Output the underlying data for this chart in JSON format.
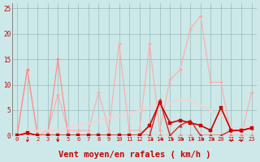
{
  "x": [
    0,
    1,
    2,
    3,
    4,
    5,
    6,
    7,
    8,
    9,
    10,
    11,
    12,
    13,
    14,
    15,
    16,
    17,
    18,
    19,
    20,
    21,
    22,
    23
  ],
  "background_color": "#cce8e8",
  "grid_color": "#99bbbb",
  "xlabel": "Vent moyen/en rafales ( km/h )",
  "xlabel_color": "#cc0000",
  "xlabel_fontsize": 7.5,
  "tick_color": "#cc0000",
  "ylim": [
    0,
    26
  ],
  "yticks": [
    0,
    5,
    10,
    15,
    20,
    25
  ],
  "lines": [
    {
      "y": [
        0,
        13,
        0,
        1,
        8,
        1,
        1,
        1,
        8.5,
        1,
        18,
        1,
        1,
        18,
        1,
        11,
        13,
        21,
        23.5,
        10.5,
        10.5,
        0,
        0,
        8.5
      ],
      "color": "#ffaaaa",
      "linewidth": 0.8,
      "marker": "D",
      "markersize": 2.0,
      "zorder": 2
    },
    {
      "y": [
        0,
        13,
        0,
        0,
        15,
        0,
        0,
        0,
        0,
        0,
        0,
        0,
        0,
        0,
        0,
        0,
        0,
        0,
        0,
        0,
        0,
        0,
        0,
        0
      ],
      "color": "#ff8888",
      "linewidth": 0.8,
      "marker": "D",
      "markersize": 2.0,
      "zorder": 2
    },
    {
      "y": [
        0,
        1,
        1,
        1,
        1,
        1.5,
        2,
        2.5,
        3,
        3.5,
        4,
        4.5,
        5,
        5.5,
        6,
        6.5,
        7,
        7,
        6,
        5,
        4,
        1.5,
        1.5,
        2
      ],
      "color": "#ffcccc",
      "linewidth": 0.8,
      "marker": "D",
      "markersize": 1.8,
      "zorder": 2
    },
    {
      "y": [
        0,
        0.5,
        0,
        0,
        0,
        0,
        0,
        0,
        0,
        0,
        0,
        0,
        0,
        2,
        6.5,
        2.5,
        3,
        2.5,
        2,
        1,
        5.5,
        1,
        1,
        1.5
      ],
      "color": "#cc0000",
      "linewidth": 1.2,
      "marker": "s",
      "markersize": 2.5,
      "zorder": 4
    },
    {
      "y": [
        0,
        0.5,
        0,
        0,
        0,
        0,
        0,
        0,
        0,
        0,
        0,
        0,
        0,
        0,
        7,
        0,
        2,
        3,
        0,
        0,
        0,
        1,
        1,
        1.5
      ],
      "color": "#dd2222",
      "linewidth": 1.0,
      "marker": "^",
      "markersize": 2.5,
      "zorder": 3
    }
  ],
  "down_arrows": [
    1,
    4,
    21,
    22
  ],
  "side_arrows": [
    13,
    14,
    15,
    16,
    17,
    18,
    19
  ],
  "arrow_color": "#cc0000"
}
